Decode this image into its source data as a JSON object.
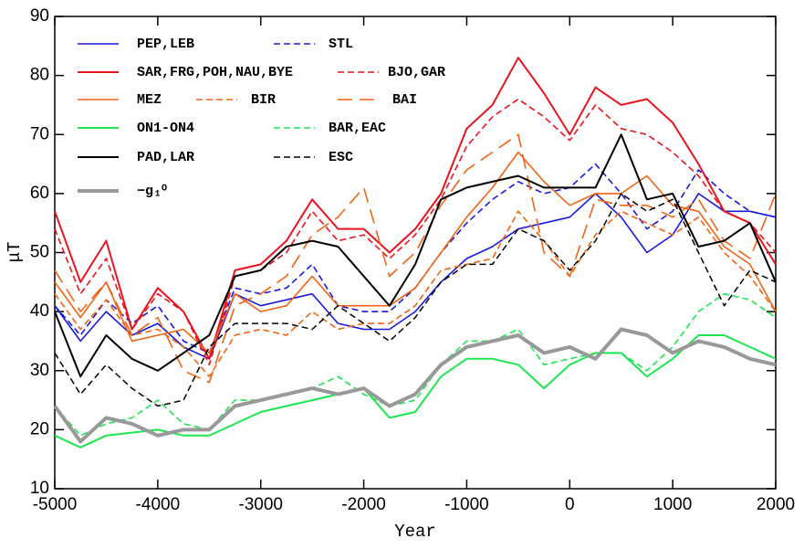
{
  "chart_data": {
    "type": "line",
    "x_label": "Year",
    "y_label": "μT",
    "xlim": [
      -5000,
      2000
    ],
    "xticks": [
      -5000,
      -4000,
      -3000,
      -2000,
      -1000,
      0,
      1000,
      2000
    ],
    "ylim": [
      10,
      90
    ],
    "yticks": [
      10,
      20,
      30,
      40,
      50,
      60,
      70,
      80,
      90
    ],
    "x": [
      -5000,
      -4750,
      -4500,
      -4250,
      -4000,
      -3750,
      -3500,
      -3250,
      -3000,
      -2750,
      -2500,
      -2250,
      -2000,
      -1750,
      -1500,
      -1250,
      -1000,
      -750,
      -500,
      -250,
      0,
      250,
      500,
      750,
      1000,
      1250,
      1500,
      1750,
      2000
    ],
    "series": [
      {
        "name": "PEP,LEB",
        "color": "#1a1adc",
        "dash": "solid",
        "width": 1.6,
        "values": [
          41,
          35,
          40,
          36,
          38,
          34,
          32,
          43,
          41,
          42,
          43,
          38,
          37,
          37,
          40,
          45,
          49,
          51,
          54,
          55,
          56,
          60,
          56,
          50,
          53,
          60,
          57,
          57,
          56
        ]
      },
      {
        "name": "STL",
        "color": "#1a1adc",
        "dash": "dashed",
        "width": 1.6,
        "values": [
          41,
          36,
          42,
          38,
          41,
          35,
          33,
          44,
          43,
          44,
          48,
          41,
          40,
          40,
          44,
          50,
          55,
          59,
          62,
          60,
          61,
          65,
          60,
          54,
          57,
          64,
          60,
          57,
          56
        ]
      },
      {
        "name": "SAR,FRG,POH,NAU,BYE",
        "color": "#e8141e",
        "dash": "solid",
        "width": 2,
        "values": [
          57,
          45,
          52,
          37,
          44,
          40,
          32,
          47,
          48,
          52,
          59,
          54,
          54,
          50,
          54,
          60,
          71,
          75,
          83,
          77,
          70,
          78,
          75,
          76,
          72,
          65,
          57,
          55,
          48
        ]
      },
      {
        "name": "BJO,GAR",
        "color": "#e8141e",
        "dash": "dashed",
        "width": 1.6,
        "values": [
          54,
          43,
          49,
          37,
          43,
          40,
          31,
          46,
          47,
          50,
          57,
          52,
          53,
          49,
          53,
          59,
          68,
          73,
          76,
          73,
          69,
          75,
          71,
          70,
          67,
          63,
          57,
          55,
          50
        ]
      },
      {
        "name": "MEZ",
        "color": "#f06414",
        "dash": "solid",
        "width": 1.6,
        "values": [
          45,
          39,
          45,
          35,
          36,
          37,
          33,
          43,
          40,
          41,
          46,
          41,
          41,
          41,
          44,
          50,
          56,
          61,
          67,
          62,
          58,
          60,
          60,
          63,
          58,
          57,
          51,
          48,
          40
        ]
      },
      {
        "name": "BIR",
        "color": "#f06414",
        "dash": "dashed",
        "width": 1.6,
        "values": [
          43,
          37,
          42,
          36,
          37,
          34,
          29,
          36,
          37,
          36,
          40,
          37,
          38,
          38,
          41,
          47,
          48,
          49,
          57,
          52,
          46,
          53,
          57,
          55,
          53,
          56,
          50,
          46,
          40
        ]
      },
      {
        "name": "BAI",
        "color": "#f06414",
        "dash": "longdash",
        "width": 1.6,
        "values": [
          47,
          40,
          45,
          36,
          39,
          30,
          28,
          41,
          43,
          46,
          53,
          56,
          61,
          46,
          50,
          58,
          64,
          67,
          70,
          50,
          46,
          59,
          58,
          58,
          56,
          59,
          52,
          49,
          60
        ]
      },
      {
        "name": "ON1-ON4",
        "color": "#1ee650",
        "dash": "solid",
        "width": 2,
        "values": [
          19,
          17,
          19,
          19.5,
          20,
          19,
          19,
          21,
          23,
          24,
          25,
          26,
          27,
          22,
          23,
          29,
          32,
          32,
          31,
          27,
          31,
          33,
          33,
          29,
          32,
          36,
          36,
          34,
          32
        ]
      },
      {
        "name": "BAR,EAC",
        "color": "#1ee650",
        "dash": "dashed",
        "width": 1.6,
        "values": [
          24,
          19,
          21,
          22,
          25,
          21,
          20,
          25,
          25,
          26,
          27,
          29,
          26,
          24,
          25,
          31,
          35,
          35,
          37,
          31,
          32,
          33,
          33,
          30,
          34,
          40,
          43,
          42,
          39
        ]
      },
      {
        "name": "PAD,LAR",
        "color": "#000000",
        "dash": "solid",
        "width": 2,
        "values": [
          40,
          29,
          36,
          32,
          30,
          33,
          36,
          46,
          47,
          51,
          52,
          51,
          46,
          41,
          48,
          59,
          61,
          62,
          63,
          61,
          61,
          61,
          70,
          59,
          60,
          51,
          52,
          55,
          45
        ]
      },
      {
        "name": "ESC",
        "color": "#000000",
        "dash": "dashed",
        "width": 1.5,
        "values": [
          33,
          26,
          31,
          27,
          24,
          25,
          34,
          38,
          38,
          38,
          37,
          41,
          38,
          35,
          39,
          45,
          48,
          48,
          54,
          52,
          47,
          52,
          60,
          57,
          59,
          50,
          41,
          47,
          45
        ]
      },
      {
        "name": "−g₁⁰",
        "color": "#999999",
        "dash": "solid",
        "width": 4,
        "values": [
          24,
          18,
          22,
          21,
          19,
          20,
          20,
          24,
          25,
          26,
          27,
          26,
          27,
          24,
          26,
          31,
          34,
          35,
          36,
          33,
          34,
          32,
          37,
          36,
          33,
          35,
          34,
          32,
          31
        ]
      }
    ]
  }
}
